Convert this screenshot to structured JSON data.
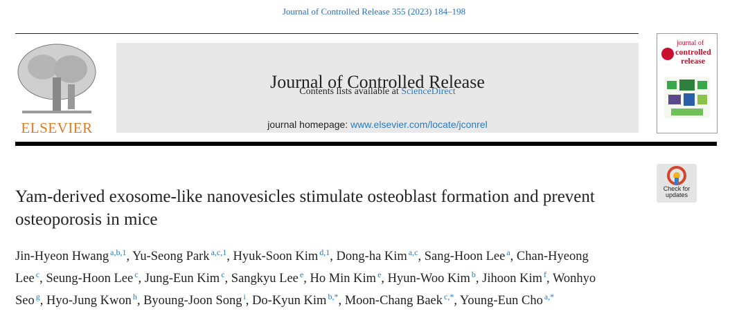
{
  "header": {
    "citation": "Journal of Controlled Release 355 (2023) 184–198",
    "contents_prefix": "Contents lists available at",
    "contents_link": "ScienceDirect",
    "journal_title": "Journal of Controlled Release",
    "homepage_prefix": "journal homepage:",
    "homepage_link": "www.elsevier.com/locate/jconrel",
    "publisher": "ELSEVIER"
  },
  "cover": {
    "line1": "journal of",
    "line2": "controlled",
    "line3": "release"
  },
  "check_updates": {
    "line1": "Check for",
    "line2": "updates"
  },
  "article": {
    "title": "Yam-derived exosome-like nanovesicles stimulate osteoblast formation and prevent osteoporosis in mice",
    "authors": [
      {
        "name": "Jin-Hyeon Hwang",
        "sup": "a,b,1"
      },
      {
        "name": "Yu-Seong Park",
        "sup": "a,c,1"
      },
      {
        "name": "Hyuk-Soon Kim",
        "sup": "d,1"
      },
      {
        "name": "Dong-ha Kim",
        "sup": "a,c"
      },
      {
        "name": "Sang-Hoon Lee",
        "sup": "a"
      },
      {
        "name": "Chan-Hyeong Lee",
        "sup": "c"
      },
      {
        "name": "Seung-Hoon Lee",
        "sup": "c"
      },
      {
        "name": "Jung-Eun Kim",
        "sup": "c"
      },
      {
        "name": "Sangkyu Lee",
        "sup": "e"
      },
      {
        "name": "Ho Min Kim",
        "sup": "e"
      },
      {
        "name": "Hyun-Woo Kim",
        "sup": "b"
      },
      {
        "name": "Jihoon Kim",
        "sup": "f"
      },
      {
        "name": "Wonhyo Seo",
        "sup": "g"
      },
      {
        "name": "Hyo-Jung Kwon",
        "sup": "h"
      },
      {
        "name": "Byoung-Joon Song",
        "sup": "i"
      },
      {
        "name": "Do-Kyun Kim",
        "sup": "b,*"
      },
      {
        "name": "Moon-Chang Baek",
        "sup": "c,*"
      },
      {
        "name": "Young-Eun Cho",
        "sup": "a,*"
      }
    ]
  }
}
